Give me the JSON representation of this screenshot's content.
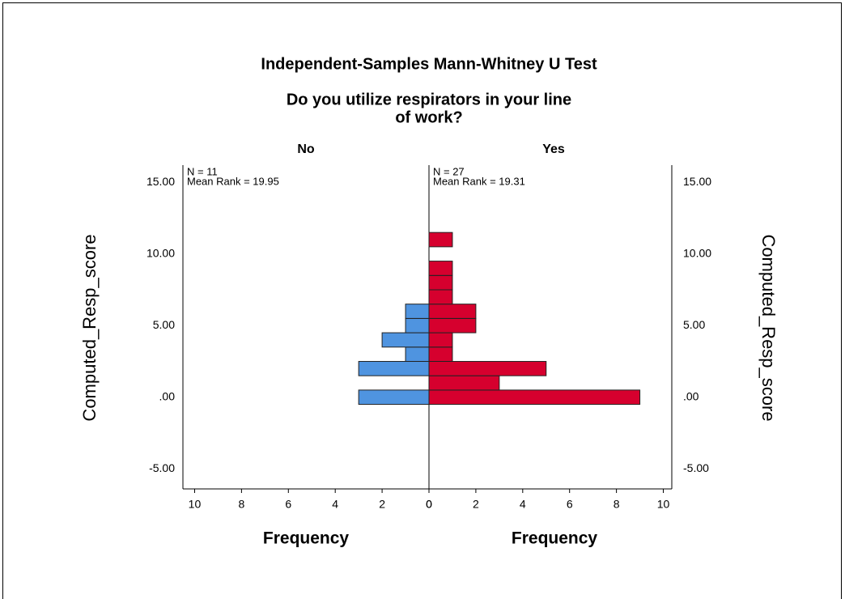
{
  "chart_data": {
    "type": "pyramid_histogram",
    "title": "Independent-Samples Mann-Whitney U Test",
    "subtitle_lines": [
      "Do you utilize respirators in your line",
      "of work?"
    ],
    "y_label": "Computed_Resp_score",
    "x_label": "Frequency",
    "bins": [
      -0.5,
      0.5,
      1.5,
      2.5,
      3.5,
      4.5,
      5.5,
      6.5,
      7.5,
      8.5,
      9.5,
      10.5,
      11.5
    ],
    "series": [
      {
        "name": "No",
        "color": "#4f94e0",
        "annotations": [
          "N = 11",
          "Mean Rank = 19.95"
        ],
        "values": [
          3,
          0,
          3,
          1,
          2,
          1,
          1,
          0,
          0,
          0,
          0,
          0
        ]
      },
      {
        "name": "Yes",
        "color": "#d6002e",
        "annotations": [
          "N = 27",
          "Mean Rank = 19.31"
        ],
        "values": [
          9,
          3,
          5,
          1,
          1,
          2,
          2,
          1,
          1,
          1,
          0,
          1
        ]
      }
    ],
    "ylim": [
      -6.4,
      16.2
    ],
    "yticks": [
      {
        "value": -5,
        "label": "-5.00"
      },
      {
        "value": 0,
        "label": ".00"
      },
      {
        "value": 5,
        "label": "5.00"
      },
      {
        "value": 10,
        "label": "10.00"
      },
      {
        "value": 15,
        "label": "15.00"
      }
    ],
    "xlim": [
      0,
      10.5
    ],
    "xticks": [
      0,
      2,
      4,
      6,
      8,
      10
    ]
  }
}
